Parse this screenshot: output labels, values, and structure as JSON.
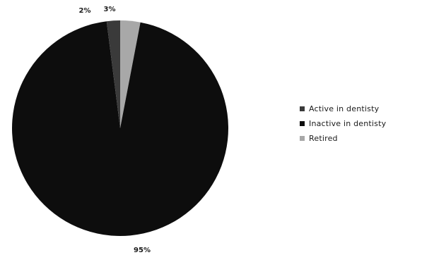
{
  "chart_data": {
    "type": "pie",
    "title": "",
    "slices": [
      {
        "label": "Active in dentisty",
        "value": 2,
        "value_label": "2%",
        "color": "#3a3a3a"
      },
      {
        "label": "Inactive in dentisty",
        "value": 95,
        "value_label": "95%",
        "color": "#0d0d0d"
      },
      {
        "label": "Retired",
        "value": 3,
        "value_label": "3%",
        "color": "#a8a8a8"
      }
    ],
    "legend_position": "right"
  }
}
